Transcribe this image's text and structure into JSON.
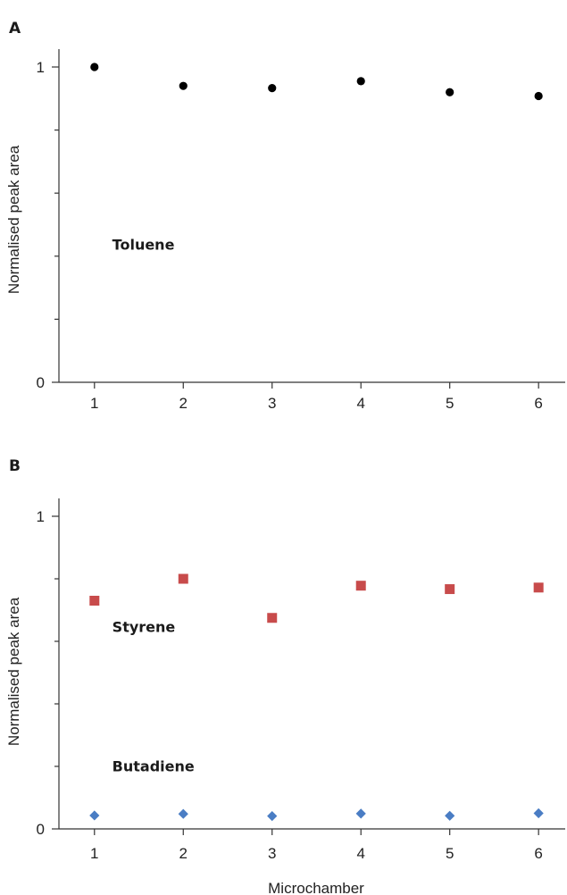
{
  "chart_data": [
    {
      "type": "scatter",
      "panel_label": "A",
      "xlabel": "",
      "ylabel": "Normalised peak area",
      "x": [
        1,
        2,
        3,
        4,
        5,
        6
      ],
      "xlim": [
        0.6,
        6.3
      ],
      "ylim": [
        0,
        1
      ],
      "y_tick_labels": [
        "0",
        "1"
      ],
      "x_tick_labels": [
        "1",
        "2",
        "3",
        "4",
        "5",
        "6"
      ],
      "y_minor_ticks": [
        0.2,
        0.4,
        0.6,
        0.8
      ],
      "grid": false,
      "series": [
        {
          "name": "Toluene",
          "marker": "circle",
          "color": "#000000",
          "values": [
            1.0,
            0.94,
            0.933,
            0.955,
            0.92,
            0.908
          ]
        }
      ],
      "annotations": [
        {
          "text": "Toluene",
          "x": 1.2,
          "y": 0.42
        }
      ]
    },
    {
      "type": "scatter",
      "panel_label": "B",
      "xlabel": "Microchamber",
      "ylabel": "Normalised peak area",
      "x": [
        1,
        2,
        3,
        4,
        5,
        6
      ],
      "xlim": [
        0.6,
        6.3
      ],
      "ylim": [
        0,
        1
      ],
      "y_tick_labels": [
        "0",
        "1"
      ],
      "x_tick_labels": [
        "1",
        "2",
        "3",
        "4",
        "5",
        "6"
      ],
      "y_minor_ticks": [
        0.2,
        0.4,
        0.6,
        0.8
      ],
      "grid": false,
      "series": [
        {
          "name": "Styrene",
          "marker": "square",
          "color": "#c84b4b",
          "values": [
            0.73,
            0.8,
            0.675,
            0.778,
            0.767,
            0.772
          ]
        },
        {
          "name": "Butadiene",
          "marker": "diamond",
          "color": "#4a7dc4",
          "values": [
            0.043,
            0.048,
            0.041,
            0.049,
            0.042,
            0.05
          ]
        }
      ],
      "annotations": [
        {
          "text": "Styrene",
          "x": 1.2,
          "y": 0.63
        },
        {
          "text": "Butadiene",
          "x": 1.2,
          "y": 0.185
        }
      ]
    }
  ]
}
